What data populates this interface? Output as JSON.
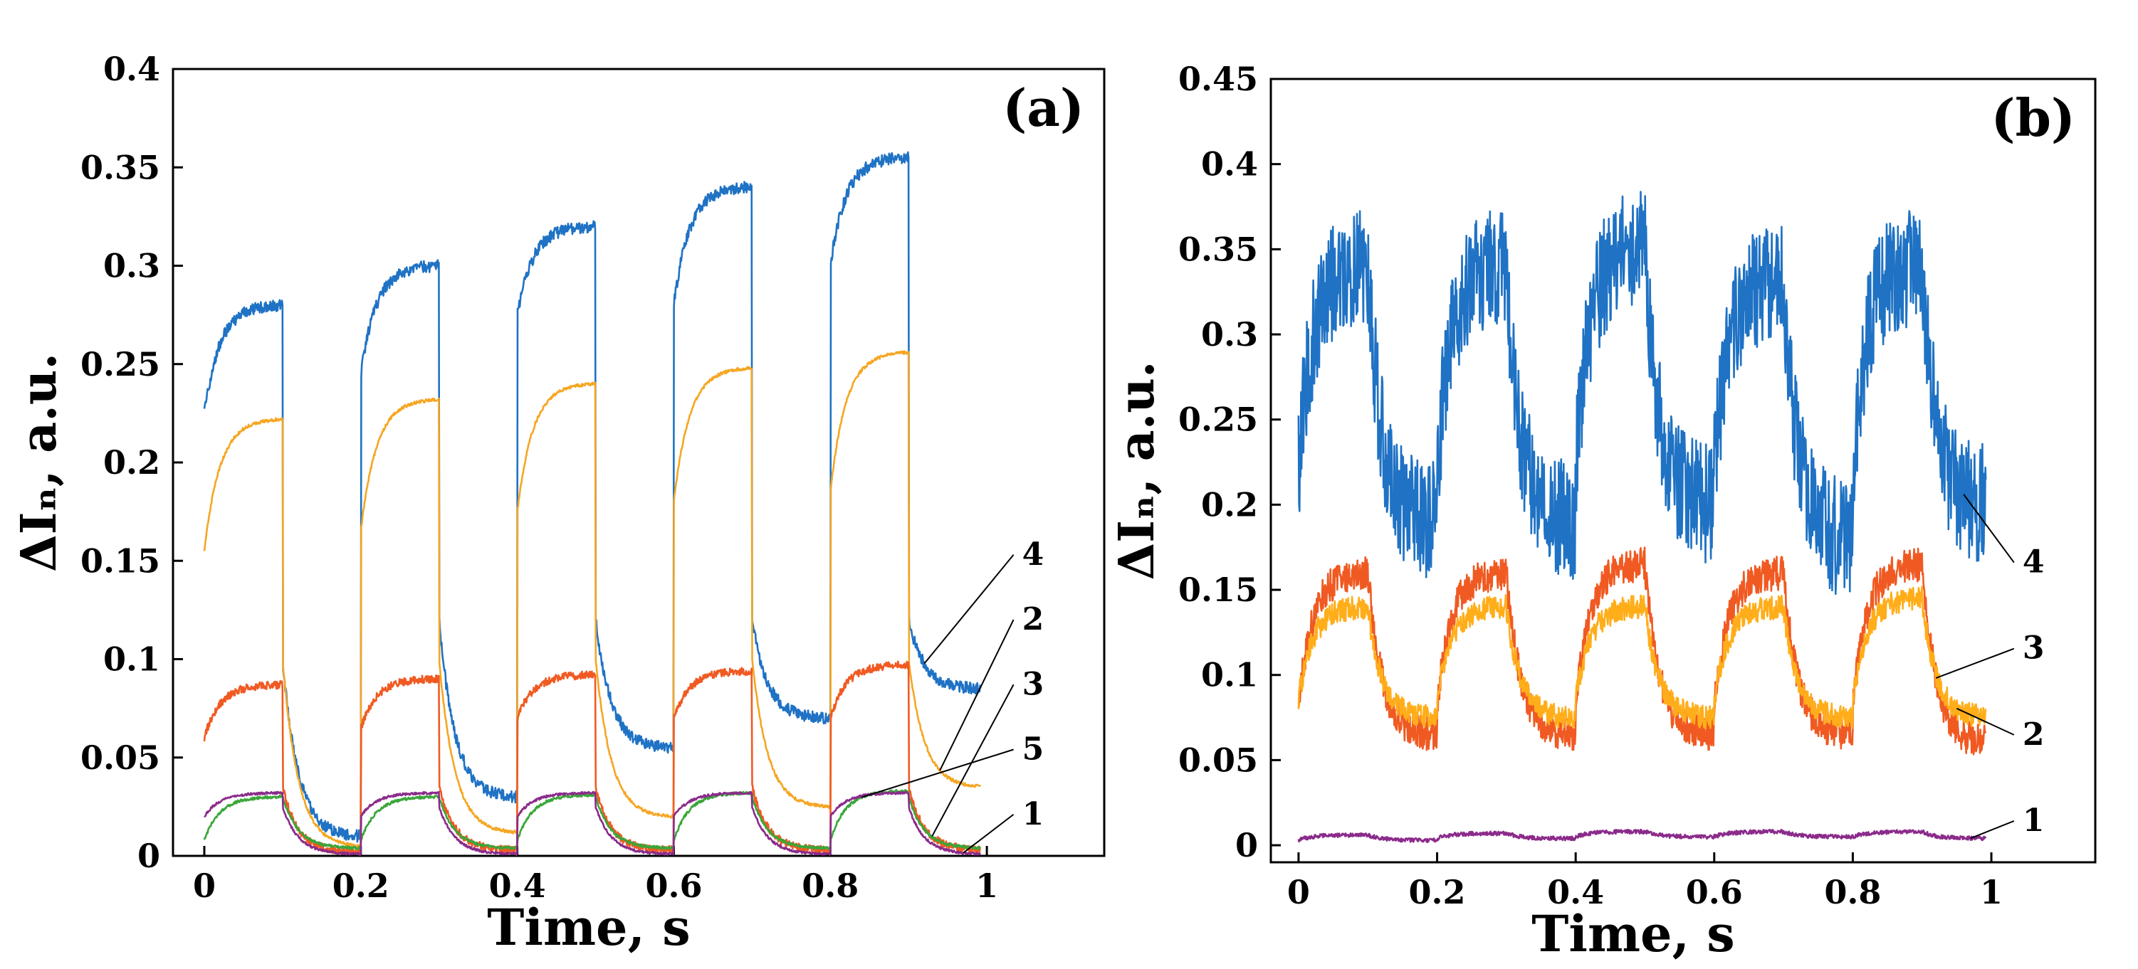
{
  "chart_data": [
    {
      "type": "line",
      "panel_label": "(a)",
      "xlabel": "Time, s",
      "ylabel": "ΔIₙ, a.u.",
      "xlim": [
        -0.04,
        1.15
      ],
      "ylim": [
        0,
        0.4
      ],
      "xticks": [
        0,
        0.2,
        0.4,
        0.6,
        0.8,
        1
      ],
      "xtick_labels": [
        "0",
        "0.2",
        "0.4",
        "0.6",
        "0.8",
        "1"
      ],
      "yticks": [
        0,
        0.05,
        0.1,
        0.15,
        0.2,
        0.25,
        0.3,
        0.35,
        0.4
      ],
      "ytick_labels": [
        "0",
        "0.05",
        "0.1",
        "0.15",
        "0.2",
        "0.25",
        "0.3",
        "0.35",
        "0.4"
      ],
      "grid": false,
      "period_s": 0.2,
      "pulse_on_s": 0.1,
      "series": [
        {
          "name": "4",
          "color": "#1f72c4",
          "noise": 0.003,
          "on_start": [
            0.225,
            0.245,
            0.275,
            0.28,
            0.3
          ],
          "on_end": [
            0.28,
            0.3,
            0.32,
            0.34,
            0.355
          ],
          "off_start": [
            0.1,
            0.12,
            0.12,
            0.12,
            0.12
          ],
          "off_end": [
            0.01,
            0.03,
            0.055,
            0.07,
            0.085
          ]
        },
        {
          "name": "2",
          "color": "#f5a623",
          "noise": 0.0008,
          "on_start": [
            0.155,
            0.165,
            0.175,
            0.18,
            0.185
          ],
          "on_end": [
            0.222,
            0.232,
            0.24,
            0.248,
            0.256
          ],
          "off_start": [
            0.1,
            0.1,
            0.1,
            0.1,
            0.1
          ],
          "off_end": [
            0.005,
            0.012,
            0.02,
            0.025,
            0.035
          ]
        },
        {
          "name": "3",
          "color": "#f05a22",
          "noise": 0.002,
          "on_start": [
            0.06,
            0.065,
            0.07,
            0.07,
            0.07
          ],
          "on_end": [
            0.087,
            0.09,
            0.092,
            0.094,
            0.097
          ],
          "off_start": [
            0.035,
            0.035,
            0.035,
            0.035,
            0.035
          ],
          "off_end": [
            0.002,
            0.003,
            0.003,
            0.003,
            0.003
          ]
        },
        {
          "name": "5",
          "color": "#3aa63a",
          "noise": 0.0007,
          "on_start": [
            0.008,
            0.008,
            0.008,
            0.008,
            0.008
          ],
          "on_end": [
            0.03,
            0.03,
            0.031,
            0.032,
            0.033
          ],
          "off_start": [
            0.03,
            0.03,
            0.03,
            0.03,
            0.03
          ],
          "off_end": [
            0.004,
            0.004,
            0.004,
            0.004,
            0.004
          ]
        },
        {
          "name": "1",
          "color": "#8b2b8b",
          "noise": 0.0006,
          "on_start": [
            0.02,
            0.02,
            0.02,
            0.02,
            0.02
          ],
          "on_end": [
            0.032,
            0.032,
            0.032,
            0.032,
            0.032
          ],
          "off_start": [
            0.025,
            0.025,
            0.025,
            0.025,
            0.025
          ],
          "off_end": [
            0.001,
            0.001,
            0.001,
            0.001,
            0.001
          ]
        }
      ],
      "curve_labels": [
        {
          "text": "4",
          "series": "4",
          "x": 0.92
        },
        {
          "text": "2",
          "series": "2",
          "x": 0.94
        },
        {
          "text": "3",
          "series": "3",
          "x": 0.93
        },
        {
          "text": "5",
          "series": "5",
          "x": 0.84
        },
        {
          "text": "1",
          "series": "1",
          "x": 0.97
        }
      ]
    },
    {
      "type": "line",
      "panel_label": "(b)",
      "xlabel": "Time, s",
      "ylabel": "ΔIₙ, a.u.",
      "xlim": [
        -0.04,
        1.15
      ],
      "ylim": [
        -0.01,
        0.45
      ],
      "xticks": [
        0,
        0.2,
        0.4,
        0.6,
        0.8,
        1
      ],
      "xtick_labels": [
        "0",
        "0.2",
        "0.4",
        "0.6",
        "0.8",
        "1"
      ],
      "yticks": [
        0,
        0.05,
        0.1,
        0.15,
        0.2,
        0.25,
        0.3,
        0.35,
        0.4,
        0.45
      ],
      "ytick_labels": [
        "0",
        "0.05",
        "0.1",
        "0.15",
        "0.2",
        "0.25",
        "0.3",
        "0.35",
        "0.4",
        "0.45"
      ],
      "grid": false,
      "period_s": 0.2,
      "pulse_on_s": 0.1,
      "series": [
        {
          "name": "4",
          "color": "#1f72c4",
          "noise": 0.035,
          "on_start": [
            0.22,
            0.22,
            0.22,
            0.22,
            0.22
          ],
          "on_end": [
            0.34,
            0.34,
            0.35,
            0.33,
            0.34
          ],
          "off_start": [
            0.34,
            0.34,
            0.35,
            0.33,
            0.34
          ],
          "off_end": [
            0.19,
            0.19,
            0.2,
            0.18,
            0.2
          ]
        },
        {
          "name": "3",
          "color": "#f05a22",
          "noise": 0.01,
          "on_start": [
            0.08,
            0.08,
            0.08,
            0.08,
            0.08
          ],
          "on_end": [
            0.16,
            0.16,
            0.165,
            0.16,
            0.165
          ],
          "off_start": [
            0.16,
            0.16,
            0.165,
            0.16,
            0.165
          ],
          "off_end": [
            0.065,
            0.065,
            0.065,
            0.065,
            0.06
          ]
        },
        {
          "name": "2",
          "color": "#ffae1a",
          "noise": 0.007,
          "on_start": [
            0.085,
            0.085,
            0.085,
            0.085,
            0.085
          ],
          "on_end": [
            0.14,
            0.14,
            0.14,
            0.14,
            0.145
          ],
          "off_start": [
            0.14,
            0.14,
            0.14,
            0.14,
            0.145
          ],
          "off_end": [
            0.075,
            0.075,
            0.075,
            0.075,
            0.075
          ]
        },
        {
          "name": "1",
          "color": "#8b2b8b",
          "noise": 0.0012,
          "on_start": [
            0.003,
            0.004,
            0.005,
            0.005,
            0.005
          ],
          "on_end": [
            0.006,
            0.007,
            0.008,
            0.008,
            0.008
          ],
          "off_start": [
            0.006,
            0.007,
            0.008,
            0.008,
            0.008
          ],
          "off_end": [
            0.003,
            0.004,
            0.005,
            0.005,
            0.004
          ]
        }
      ],
      "curve_labels": [
        {
          "text": "4",
          "series": "4",
          "x": 0.96
        },
        {
          "text": "3",
          "series": "3",
          "x": 0.92
        },
        {
          "text": "2",
          "series": "2",
          "x": 0.95
        },
        {
          "text": "1",
          "series": "1",
          "x": 0.97
        }
      ]
    }
  ]
}
